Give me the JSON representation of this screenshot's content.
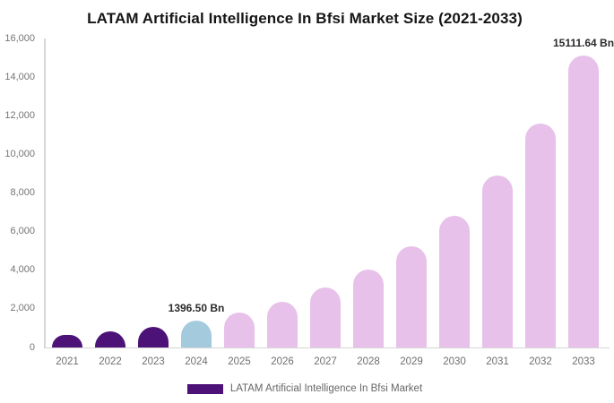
{
  "title": "LATAM Artificial Intelligence In Bfsi Market Size (2021-2033)",
  "legend": {
    "label": "LATAM Artificial Intelligence In Bfsi Market"
  },
  "colors": {
    "historical": "#4c1277",
    "base_year": "#a4cade",
    "forecast": "#e7c1ea",
    "axis_line": "#d6d6d6",
    "tick_text": "#757575",
    "annotation_text": "#2b2b2b"
  },
  "chart_data": {
    "type": "bar",
    "title": "LATAM Artificial Intelligence In Bfsi Market Size (2021-2033)",
    "xlabel": "",
    "ylabel": "",
    "unit": "Bn",
    "categories": [
      "2021",
      "2022",
      "2023",
      "2024",
      "2025",
      "2026",
      "2027",
      "2028",
      "2029",
      "2030",
      "2031",
      "2032",
      "2033"
    ],
    "values": [
      630,
      823,
      1072,
      1396.5,
      1820,
      2371,
      3089,
      4025,
      5244,
      6833,
      8903,
      11601,
      15111.64
    ],
    "bar_roles": [
      "historical",
      "historical",
      "historical",
      "base_year",
      "forecast",
      "forecast",
      "forecast",
      "forecast",
      "forecast",
      "forecast",
      "forecast",
      "forecast",
      "forecast"
    ],
    "ylim": [
      0,
      16000
    ],
    "yticks": [
      0,
      2000,
      4000,
      6000,
      8000,
      10000,
      12000,
      14000,
      16000
    ],
    "ytick_labels": [
      "0",
      "2,000",
      "4,000",
      "6,000",
      "8,000",
      "10,000",
      "12,000",
      "14,000",
      "16,000"
    ],
    "grid": false,
    "legend_position": "bottom-center",
    "annotations": [
      {
        "category": "2024",
        "text": "1396.50 Bn"
      },
      {
        "category": "2033",
        "text": "15111.64 Bn"
      }
    ]
  }
}
